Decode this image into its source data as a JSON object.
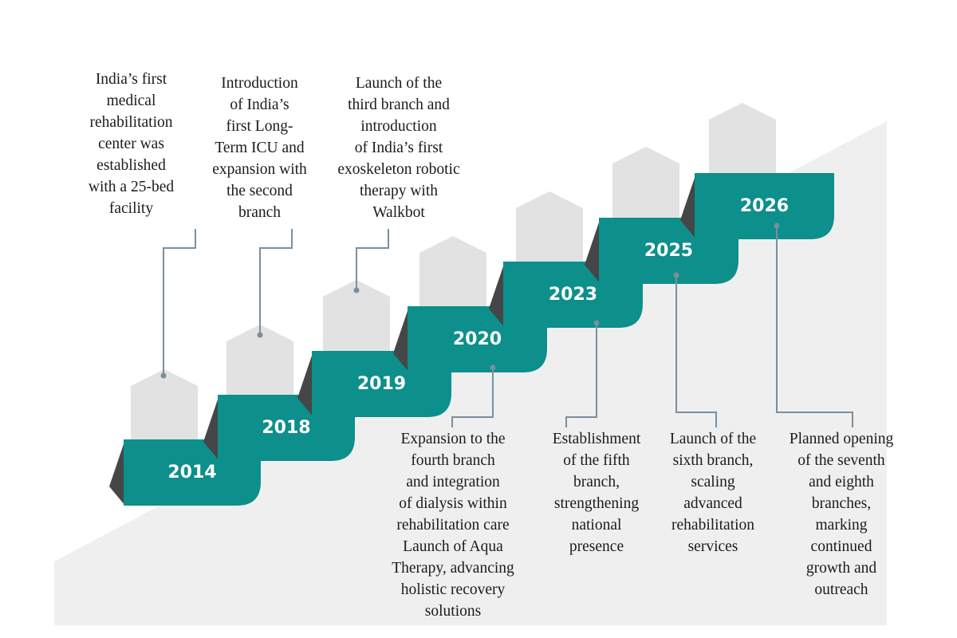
{
  "colors": {
    "teal": "#0d8f8b",
    "step_shadow": "#444647",
    "arrow_gray": "#e2e2e2",
    "background_slope": "#efefef",
    "connector": "#7a8f9c",
    "text": "#1b1b1b"
  },
  "milestones": [
    {
      "year": "2014",
      "description": "India’s first\nmedical\nrehabilitation\ncenter was\nestablished\nwith a 25-bed\nfacility"
    },
    {
      "year": "2018",
      "description": "Introduction\nof India’s\nfirst Long-\nTerm ICU and\nexpansion with\nthe second\nbranch"
    },
    {
      "year": "2019",
      "description": "Launch of the\nthird branch and\nintroduction\nof India’s first\nexoskeleton robotic\ntherapy with\nWalkbot"
    },
    {
      "year": "2020",
      "description": "Expansion to the\nfourth branch\nand integration\nof dialysis within\nrehabilitation care\nLaunch of Aqua\nTherapy, advancing\nholistic recovery\nsolutions"
    },
    {
      "year": "2023",
      "description": "Establishment\nof the fifth\nbranch,\nstrengthening\nnational\npresence"
    },
    {
      "year": "2025",
      "description": "Launch of the\nsixth branch,\nscaling\nadvanced\nrehabilitation\nservices"
    },
    {
      "year": "2026",
      "description": "Planned opening\nof the seventh\nand eighth\nbranches,\nmarking\ncontinued\ngrowth and\noutreach"
    }
  ]
}
